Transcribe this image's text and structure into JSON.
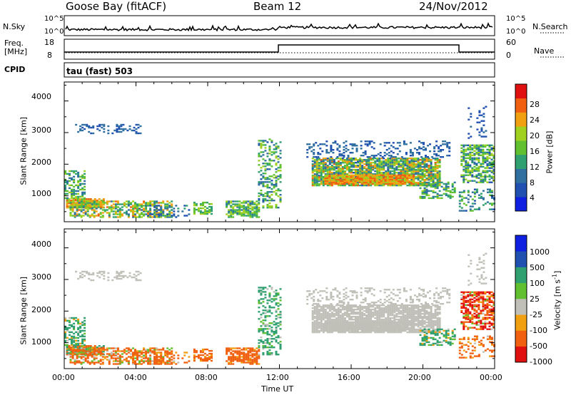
{
  "header": {
    "station": "Goose Bay (fitACF)",
    "beam": "Beam 12",
    "date": "24/Nov/2012"
  },
  "top_panel": {
    "left_label": "N.Sky",
    "left_ticks": [
      "10^5",
      "10^0"
    ],
    "right_label": "N.Search",
    "right_ticks": [
      "10^5",
      "10^0"
    ]
  },
  "freq_panel": {
    "left_label_line1": "Freq.",
    "left_label_line2": "[MHz]",
    "left_ticks": [
      "18",
      "8"
    ],
    "right_label": "Nave",
    "right_ticks": [
      "60",
      "0"
    ]
  },
  "cpid": {
    "label": "CPID",
    "text": "tau (fast) 503"
  },
  "x_axis": {
    "label": "Time UT",
    "ticks": [
      "00:00",
      "04:00",
      "08:00",
      "12:00",
      "16:00",
      "20:00",
      "00:00"
    ]
  },
  "colors": {
    "power": [
      "#1020e0",
      "#2050b0",
      "#3070a0",
      "#30a070",
      "#60c030",
      "#a0d020",
      "#f0a010",
      "#f06010",
      "#e01010"
    ],
    "velocity": [
      "#1020e0",
      "#2050b0",
      "#30a070",
      "#60c030",
      "#c0c0b8",
      "#f0a010",
      "#f06010",
      "#e01010"
    ]
  },
  "chart_data": [
    {
      "type": "heatmap",
      "name": "power",
      "ylabel": "Slant Range [km]",
      "yticks": [
        "1000",
        "2000",
        "3000",
        "4000"
      ],
      "ylim": [
        180,
        4600
      ],
      "xlim_hours": [
        0,
        24
      ],
      "colorbar_label": "Power [dB]",
      "colorbar_ticks": [
        "4",
        "8",
        "12",
        "16",
        "20",
        "24",
        "28"
      ],
      "clim": [
        0,
        30
      ]
    },
    {
      "type": "heatmap",
      "name": "velocity",
      "ylabel": "Slant Range [km]",
      "yticks": [
        "1000",
        "2000",
        "3000",
        "4000"
      ],
      "ylim": [
        180,
        4600
      ],
      "xlim_hours": [
        0,
        24
      ],
      "colorbar_label": "Velocity [m s",
      "colorbar_label_sup": "-1",
      "colorbar_label_end": "]",
      "colorbar_ticks": [
        "1000",
        "500",
        "100",
        "25",
        "-25",
        "-100",
        "-500",
        "-1000"
      ]
    }
  ]
}
